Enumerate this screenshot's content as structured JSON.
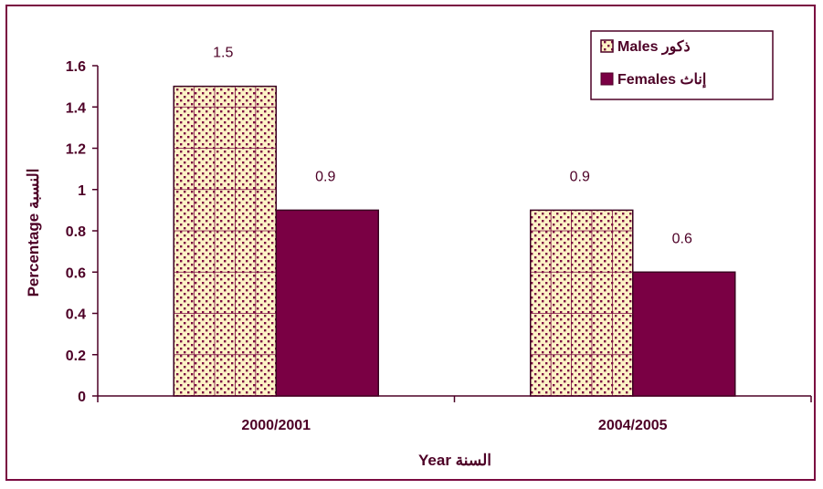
{
  "chart_data": {
    "type": "bar",
    "categories": [
      "2000/2001",
      "2004/2005"
    ],
    "series": [
      {
        "name": "Males ذكور",
        "values": [
          1.5,
          0.9
        ],
        "color": "#fdf3c6",
        "pattern": "dotted",
        "dot_color": "#7a0a40"
      },
      {
        "name": "Females إناث",
        "values": [
          0.9,
          0.6
        ],
        "color": "#7a0044"
      }
    ],
    "data_labels": [
      [
        "1.5",
        "0.9"
      ],
      [
        "0.9",
        "0.6"
      ]
    ],
    "xlabel": "Year السنة",
    "ylabel": "Percentage النسبة",
    "ylim": [
      0,
      1.6
    ],
    "yticks": [
      "0",
      "0.2",
      "0.4",
      "0.6",
      "0.8",
      "1",
      "1.2",
      "1.4",
      "1.6"
    ],
    "grid": false,
    "legend_position": "top-right",
    "colors": {
      "axis": "#4d0026",
      "border": "#7a0a40",
      "text": "#4d0026"
    }
  }
}
